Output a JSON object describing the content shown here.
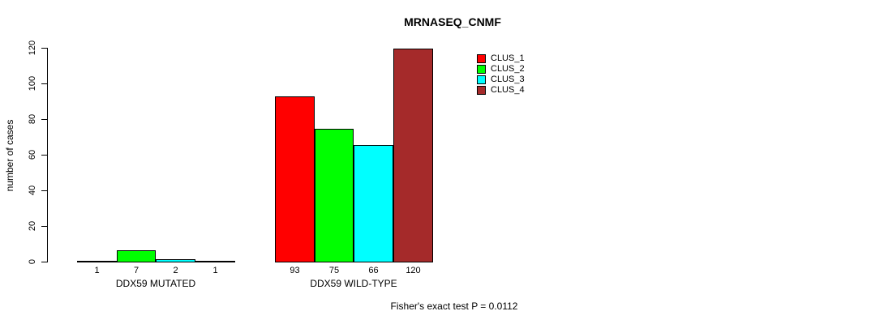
{
  "chart_data": {
    "type": "bar",
    "title": "MRNASEQ_CNMF",
    "ylabel": "number of cases",
    "xlabel": "",
    "ylim": [
      0,
      120
    ],
    "yticks": [
      0,
      20,
      40,
      60,
      80,
      100,
      120
    ],
    "categories": [
      "DDX59 MUTATED",
      "DDX59 WILD-TYPE"
    ],
    "series": [
      {
        "name": "CLUS_1",
        "color": "#FF0000",
        "values": [
          1,
          93
        ]
      },
      {
        "name": "CLUS_2",
        "color": "#00FF00",
        "values": [
          7,
          75
        ]
      },
      {
        "name": "CLUS_3",
        "color": "#00FFFF",
        "values": [
          2,
          66
        ]
      },
      {
        "name": "CLUS_4",
        "color": "#A52A2A",
        "values": [
          1,
          120
        ]
      }
    ],
    "grid": false,
    "legend_position": "top-right",
    "annotation": "Fisher's exact test P = 0.0112"
  }
}
